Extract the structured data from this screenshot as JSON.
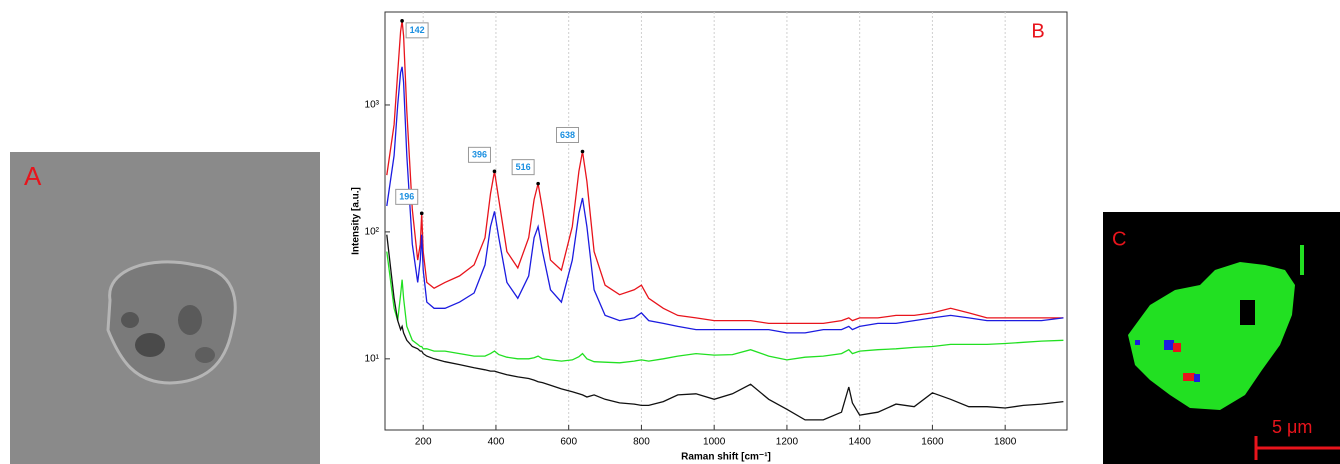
{
  "panels": {
    "a_label": "A",
    "c_label": "C",
    "scale_bar": "5 μm"
  },
  "chart_data": {
    "type": "line",
    "panel_label": "B",
    "x_label": "Raman shift [cm⁻¹]",
    "y_label": "Intensity [a.u.]",
    "log_y": true,
    "grid": true,
    "xlim": [
      95,
      1970
    ],
    "ylim": [
      2.75,
      5400
    ],
    "xticks": [
      200,
      400,
      600,
      800,
      1000,
      1200,
      1400,
      1600,
      1800
    ],
    "yticks": [
      {
        "value": 10,
        "label": "10¹"
      },
      {
        "value": 100,
        "label": "10²"
      },
      {
        "value": 1000,
        "label": "10³"
      }
    ],
    "x": [
      100,
      120,
      130,
      138,
      142,
      146,
      155,
      170,
      185,
      192,
      196,
      200,
      210,
      230,
      260,
      300,
      340,
      370,
      385,
      396,
      408,
      430,
      460,
      490,
      505,
      516,
      528,
      550,
      580,
      610,
      628,
      638,
      650,
      670,
      700,
      740,
      780,
      800,
      820,
      860,
      900,
      950,
      1000,
      1050,
      1100,
      1150,
      1200,
      1250,
      1300,
      1350,
      1370,
      1380,
      1400,
      1450,
      1500,
      1550,
      1600,
      1650,
      1700,
      1750,
      1800,
      1850,
      1900,
      1960
    ],
    "series": [
      {
        "color": "#e8141c",
        "values": [
          280,
          700,
          1800,
          3800,
          4600,
          3500,
          900,
          150,
          60,
          80,
          140,
          70,
          40,
          36,
          40,
          45,
          55,
          90,
          200,
          300,
          180,
          70,
          52,
          90,
          180,
          240,
          150,
          60,
          50,
          110,
          300,
          430,
          250,
          70,
          38,
          32,
          35,
          38,
          30,
          25,
          22,
          21,
          20,
          20,
          20,
          19,
          19,
          19,
          19,
          20,
          21,
          20,
          21,
          21,
          22,
          22,
          23,
          25,
          23,
          21,
          21,
          21,
          21,
          21
        ]
      },
      {
        "color": "#1c1ce0",
        "values": [
          160,
          400,
          1000,
          1800,
          2000,
          1500,
          400,
          80,
          40,
          60,
          95,
          50,
          28,
          25,
          25,
          28,
          33,
          55,
          110,
          145,
          90,
          40,
          30,
          45,
          90,
          110,
          70,
          35,
          28,
          60,
          140,
          185,
          110,
          35,
          22,
          20,
          21,
          23,
          20,
          19,
          18,
          17,
          17,
          17,
          17,
          17,
          16,
          16,
          17,
          17,
          18,
          17,
          18,
          19,
          19,
          20,
          21,
          22,
          21,
          20,
          20,
          20,
          20,
          21
        ]
      },
      {
        "color": "#22e022",
        "values": [
          70,
          25,
          20,
          32,
          42,
          30,
          18,
          14,
          13,
          12.5,
          12.5,
          12,
          12,
          11.5,
          11.5,
          11,
          10.5,
          10.5,
          11,
          11.5,
          10.8,
          10.3,
          10,
          10,
          10.2,
          10.5,
          10,
          9.8,
          9.6,
          9.8,
          10.4,
          11,
          10,
          9.5,
          9.4,
          9.3,
          9.6,
          9.8,
          9.6,
          10,
          10.5,
          11,
          10.7,
          10.8,
          11.8,
          10.5,
          9.8,
          10.3,
          10.5,
          11,
          11.8,
          11,
          11.5,
          11.8,
          12,
          12.3,
          12.5,
          13,
          13,
          13,
          13.2,
          13.5,
          13.8,
          14
        ]
      },
      {
        "color": "#111111",
        "values": [
          95,
          30,
          20,
          17,
          18,
          16,
          14,
          12.5,
          12,
          11.5,
          11.5,
          11,
          10.5,
          10,
          9.5,
          9,
          8.5,
          8.2,
          8,
          8,
          7.8,
          7.5,
          7.2,
          7,
          6.8,
          6.6,
          6.5,
          6.2,
          5.8,
          5.5,
          5.3,
          5.2,
          5,
          5.2,
          4.8,
          4.5,
          4.4,
          4.3,
          4.3,
          4.6,
          5.2,
          5.3,
          4.8,
          5.3,
          6.3,
          4.8,
          4,
          3.3,
          3.3,
          3.8,
          6,
          4.5,
          3.6,
          3.8,
          4.4,
          4.2,
          5.4,
          4.8,
          4.2,
          4.2,
          4.1,
          4.3,
          4.4,
          4.6
        ]
      }
    ],
    "annotations": [
      {
        "x": 142,
        "y": 4600
      },
      {
        "x": 196,
        "y": 140
      },
      {
        "x": 396,
        "y": 300
      },
      {
        "x": 516,
        "y": 240
      },
      {
        "x": 638,
        "y": 430
      }
    ]
  }
}
